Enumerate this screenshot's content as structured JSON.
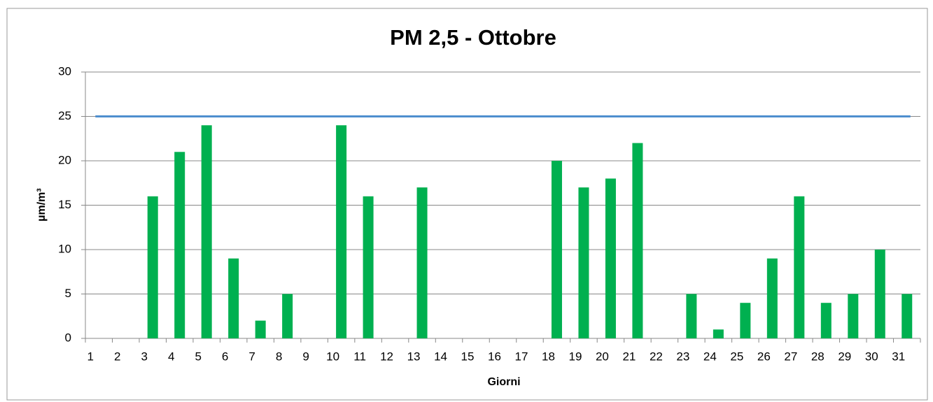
{
  "chart_data": {
    "type": "bar",
    "title": "PM 2,5 - Ottobre",
    "x_label": "Giorni",
    "y_label": "µm/m³",
    "categories": [
      "1",
      "2",
      "3",
      "4",
      "5",
      "6",
      "7",
      "8",
      "9",
      "10",
      "11",
      "12",
      "13",
      "14",
      "15",
      "16",
      "17",
      "18",
      "19",
      "20",
      "21",
      "22",
      "23",
      "24",
      "25",
      "26",
      "27",
      "28",
      "29",
      "30",
      "31"
    ],
    "values": [
      null,
      null,
      16,
      21,
      24,
      9,
      2,
      5,
      null,
      24,
      16,
      null,
      17,
      null,
      null,
      null,
      null,
      20,
      17,
      18,
      22,
      null,
      5,
      1,
      4,
      9,
      16,
      4,
      5,
      10,
      5
    ],
    "color": "#00b050",
    "limit": {
      "value": 25,
      "color": "#4f8fcf"
    },
    "ylim": [
      0,
      30
    ],
    "yticks": [
      0,
      5,
      10,
      15,
      20,
      25,
      30
    ],
    "grid": true
  }
}
